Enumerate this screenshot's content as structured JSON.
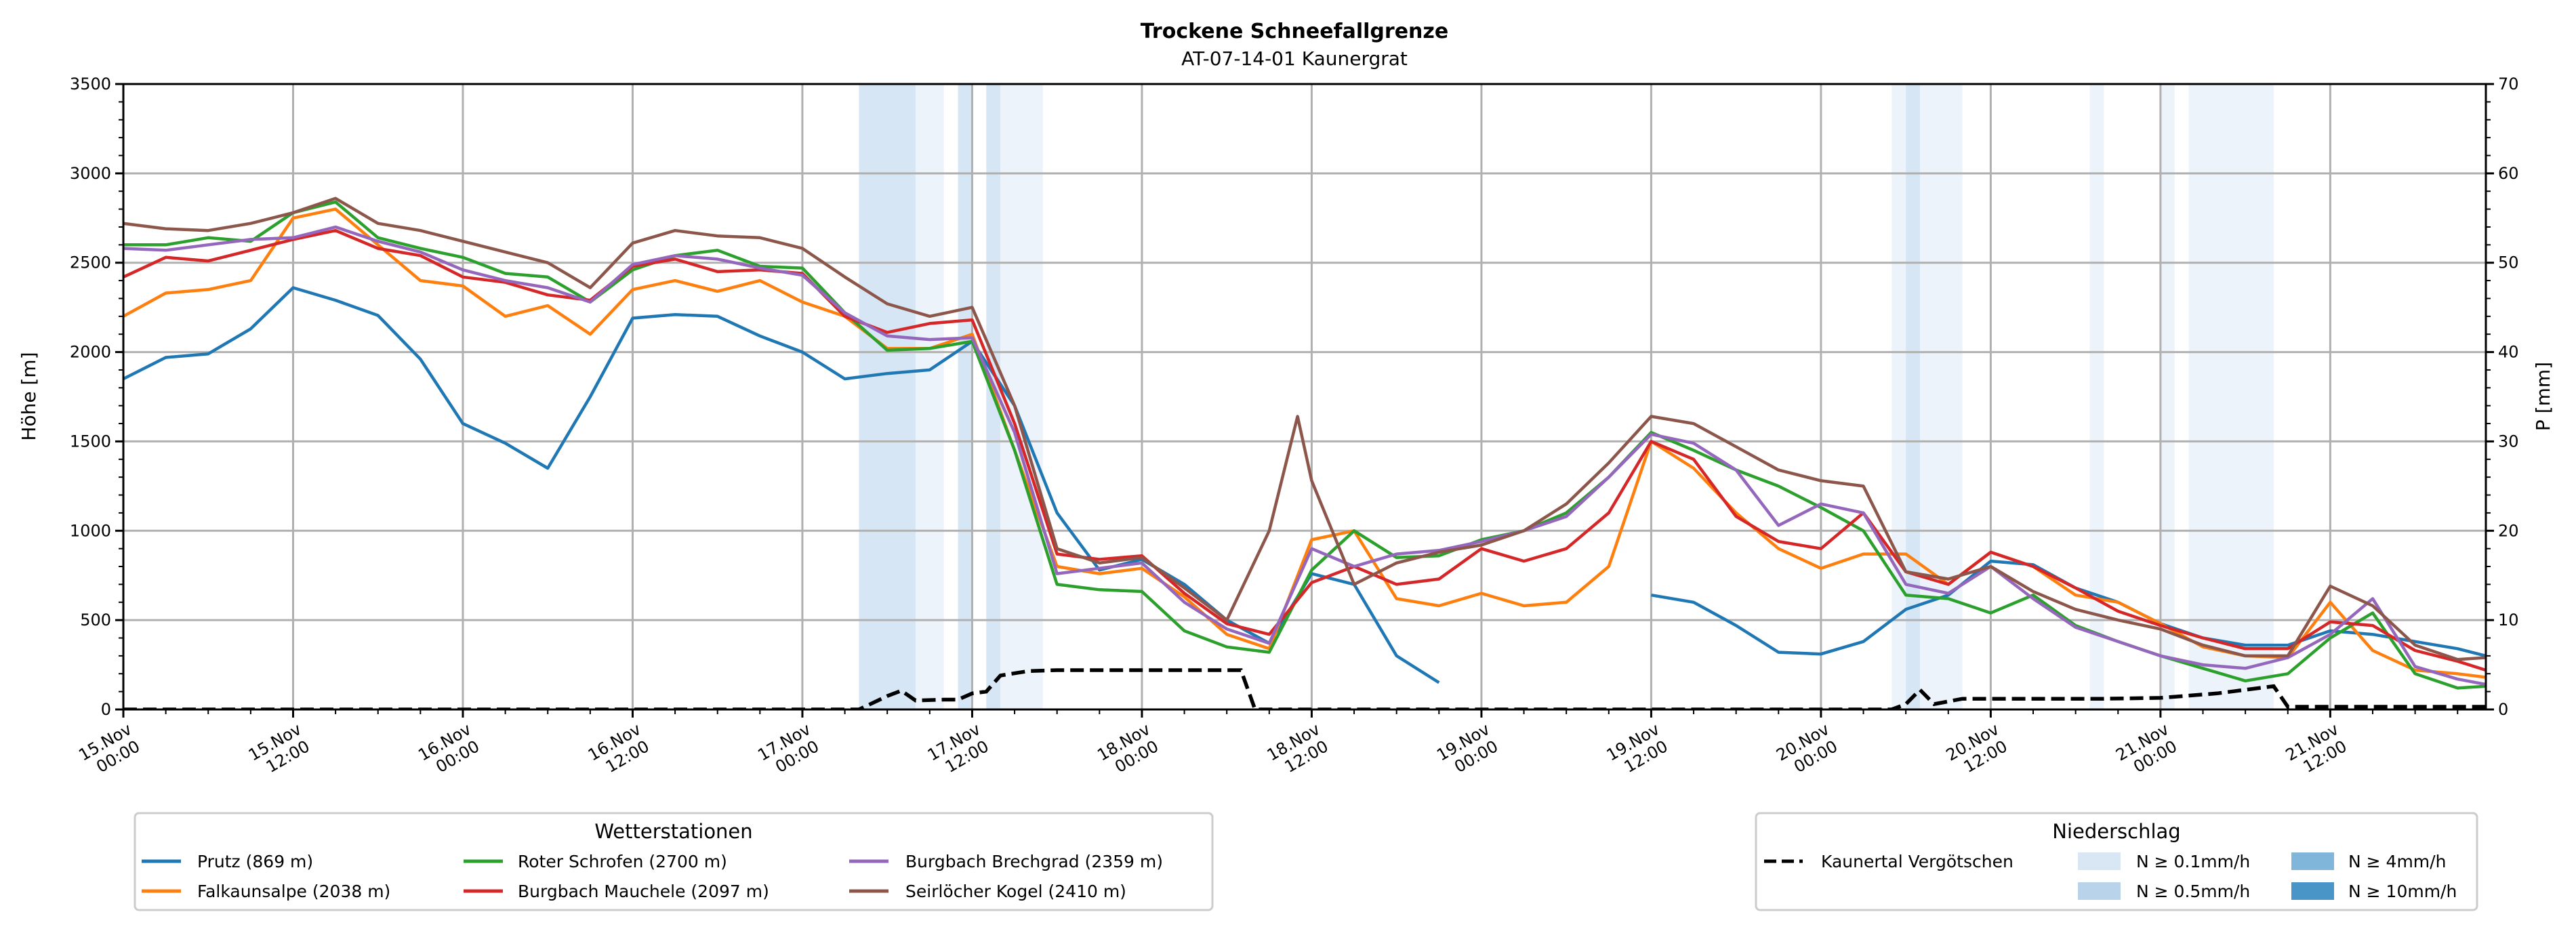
{
  "chart_data": {
    "type": "line",
    "title": "Trockene Schneefallgrenze",
    "subtitle": "AT-07-14-01 Kaunergrat",
    "ylabel": "Höhe [m]",
    "y2label": "P [mm]",
    "ylim": [
      0,
      3500
    ],
    "y2lim": [
      0,
      70
    ],
    "yticks": [
      "0",
      "500",
      "1000",
      "1500",
      "2000",
      "2500",
      "3000",
      "3500"
    ],
    "y2ticks": [
      "0",
      "10",
      "20",
      "30",
      "40",
      "50",
      "60",
      "70"
    ],
    "xlim_hours": [
      0,
      167
    ],
    "xticks": [
      [
        "15.Nov",
        "00:00"
      ],
      [
        "15.Nov",
        "12:00"
      ],
      [
        "16.Nov",
        "00:00"
      ],
      [
        "16.Nov",
        "12:00"
      ],
      [
        "17.Nov",
        "00:00"
      ],
      [
        "17.Nov",
        "12:00"
      ],
      [
        "18.Nov",
        "00:00"
      ],
      [
        "18.Nov",
        "12:00"
      ],
      [
        "19.Nov",
        "00:00"
      ],
      [
        "19.Nov",
        "12:00"
      ],
      [
        "20.Nov",
        "00:00"
      ],
      [
        "20.Nov",
        "12:00"
      ],
      [
        "21.Nov",
        "00:00"
      ],
      [
        "21.Nov",
        "12:00"
      ]
    ],
    "grid": true,
    "x_hours": [
      0,
      3,
      6,
      9,
      12,
      15,
      18,
      21,
      24,
      27,
      30,
      33,
      36,
      39,
      42,
      45,
      48,
      51,
      54,
      57,
      60,
      63,
      66,
      69,
      72,
      75,
      78,
      81,
      84,
      87,
      90,
      93,
      96,
      99,
      102,
      105,
      108,
      111,
      114,
      117,
      120,
      123,
      126,
      129,
      132,
      135,
      138,
      141,
      144,
      147,
      150,
      153,
      156,
      159,
      162,
      165,
      167
    ],
    "series": [
      {
        "name": "Prutz (869 m)",
        "color": "#1f77b4",
        "values": [
          1850,
          1970,
          1990,
          2130,
          2360,
          2290,
          2205,
          1960,
          1600,
          1490,
          1350,
          1750,
          2190,
          2210,
          2200,
          2090,
          2000,
          1850,
          1880,
          1900,
          2060,
          1700,
          1100,
          780,
          840,
          700,
          500,
          370,
          760,
          700,
          300,
          150,
          null,
          null,
          null,
          null,
          640,
          600,
          470,
          320,
          310,
          380,
          560,
          640,
          830,
          810,
          680,
          600,
          480,
          400,
          360,
          360,
          440,
          420,
          380,
          340,
          300
        ]
      },
      {
        "name": "Falkaunsalpe (2038 m)",
        "color": "#ff7f0e",
        "values": [
          2200,
          2330,
          2350,
          2400,
          2750,
          2800,
          2600,
          2400,
          2370,
          2200,
          2260,
          2100,
          2350,
          2400,
          2340,
          2400,
          2280,
          2200,
          2020,
          2020,
          2100,
          1450,
          800,
          760,
          790,
          630,
          420,
          340,
          950,
          1000,
          620,
          580,
          650,
          580,
          600,
          800,
          1500,
          1350,
          1100,
          900,
          790,
          870,
          870,
          700,
          880,
          800,
          640,
          600,
          480,
          350,
          300,
          290,
          600,
          330,
          220,
          200,
          180
        ]
      },
      {
        "name": "Roter Schrofen (2700 m)",
        "color": "#2ca02c",
        "values": [
          2600,
          2600,
          2640,
          2620,
          2780,
          2840,
          2640,
          2580,
          2530,
          2440,
          2420,
          2280,
          2460,
          2540,
          2570,
          2480,
          2470,
          2220,
          2010,
          2020,
          2060,
          1450,
          700,
          670,
          660,
          440,
          350,
          320,
          780,
          1000,
          850,
          860,
          950,
          1000,
          1100,
          1300,
          1550,
          1450,
          1340,
          1250,
          1130,
          1000,
          640,
          620,
          540,
          640,
          470,
          380,
          300,
          230,
          160,
          200,
          400,
          540,
          200,
          120,
          130
        ]
      },
      {
        "name": "Burgbach Mauchele (2097 m)",
        "color": "#d62728",
        "values": [
          2420,
          2530,
          2510,
          2570,
          2630,
          2680,
          2580,
          2540,
          2420,
          2390,
          2320,
          2290,
          2480,
          2520,
          2450,
          2460,
          2440,
          2200,
          2110,
          2160,
          2180,
          1600,
          870,
          840,
          860,
          650,
          480,
          420,
          710,
          800,
          700,
          730,
          900,
          830,
          900,
          1100,
          1500,
          1400,
          1080,
          940,
          900,
          1100,
          770,
          700,
          880,
          800,
          680,
          550,
          470,
          400,
          340,
          340,
          490,
          470,
          330,
          270,
          220
        ]
      },
      {
        "name": "Burgbach Brechgrad (2359 m)",
        "color": "#9467bd",
        "values": [
          2580,
          2570,
          2600,
          2630,
          2640,
          2700,
          2620,
          2560,
          2460,
          2400,
          2360,
          2280,
          2490,
          2540,
          2520,
          2470,
          2430,
          2220,
          2090,
          2070,
          2080,
          1550,
          760,
          790,
          820,
          600,
          450,
          370,
          900,
          800,
          870,
          890,
          940,
          1000,
          1080,
          1300,
          1540,
          1490,
          1340,
          1030,
          1150,
          1100,
          700,
          650,
          800,
          620,
          460,
          380,
          300,
          250,
          230,
          290,
          420,
          620,
          240,
          170,
          140
        ]
      },
      {
        "name": "Seirlöcher Kogel (2410 m)",
        "color": "#8c564b",
        "values": [
          2720,
          2690,
          2680,
          2720,
          2780,
          2860,
          2720,
          2680,
          2620,
          2560,
          2500,
          2360,
          2610,
          2680,
          2650,
          2640,
          2580,
          2420,
          2270,
          2200,
          2250,
          1700,
          900,
          820,
          850,
          680,
          500,
          1000,
          1280,
          700,
          820,
          880,
          920,
          1000,
          1150,
          1380,
          1640,
          1600,
          1470,
          1340,
          1280,
          1250,
          770,
          730,
          800,
          660,
          560,
          500,
          450,
          360,
          300,
          300,
          690,
          580,
          360,
          280,
          290
        ],
        "extra_points": [
          [
            83,
            1640
          ]
        ]
      }
    ],
    "precip": {
      "name": "Kaunertal Vergötschen",
      "color": "#000000",
      "points": [
        [
          0,
          0
        ],
        [
          52,
          0
        ],
        [
          54,
          1.5
        ],
        [
          55,
          2.1
        ],
        [
          56,
          1
        ],
        [
          58,
          1.1
        ],
        [
          59,
          1.1
        ],
        [
          60,
          1.8
        ],
        [
          61,
          2
        ],
        [
          62,
          3.8
        ],
        [
          64,
          4.3
        ],
        [
          66,
          4.4
        ],
        [
          79,
          4.4
        ],
        [
          80,
          0
        ],
        [
          125,
          0
        ],
        [
          126,
          0.6
        ],
        [
          127,
          2.2
        ],
        [
          128,
          0.6
        ],
        [
          130,
          1.2
        ],
        [
          140,
          1.2
        ],
        [
          144,
          1.3
        ],
        [
          148,
          1.8
        ],
        [
          152,
          2.6
        ],
        [
          153,
          0.3
        ],
        [
          167,
          0.3
        ]
      ]
    },
    "precip_bands": [
      {
        "from": 52,
        "to": 56,
        "level": "0.5"
      },
      {
        "from": 56,
        "to": 58,
        "level": "0.1"
      },
      {
        "from": 59,
        "to": 60,
        "level": "0.5"
      },
      {
        "from": 61,
        "to": 62,
        "level": "0.5"
      },
      {
        "from": 62,
        "to": 65,
        "level": "0.1"
      },
      {
        "from": 125,
        "to": 126,
        "level": "0.1"
      },
      {
        "from": 126,
        "to": 127,
        "level": "0.5"
      },
      {
        "from": 127,
        "to": 130,
        "level": "0.1"
      },
      {
        "from": 139,
        "to": 140,
        "level": "0.1"
      },
      {
        "from": 144,
        "to": 145,
        "level": "0.1"
      },
      {
        "from": 146,
        "to": 152,
        "level": "0.1"
      }
    ],
    "band_colors": {
      "0.1": "#edf3fa",
      "0.5": "#d6e6f4",
      "4": "#a9cce6",
      "10": "#7fb2d9"
    },
    "legend_stations": {
      "title": "Wetterstationen",
      "placement": "bottom-left"
    },
    "legend_precip": {
      "title": "Niederschlag",
      "placement": "bottom-right",
      "line_label": "Kaunertal Vergötschen",
      "items": [
        {
          "label": "N ≥ 0.1mm/h",
          "color": "#d9e7f4"
        },
        {
          "label": "N ≥ 0.5mm/h",
          "color": "#b9d4ea"
        },
        {
          "label": "N ≥ 4mm/h",
          "color": "#80b6d9"
        },
        {
          "label": "N ≥ 10mm/h",
          "color": "#4a95c8"
        }
      ]
    }
  }
}
